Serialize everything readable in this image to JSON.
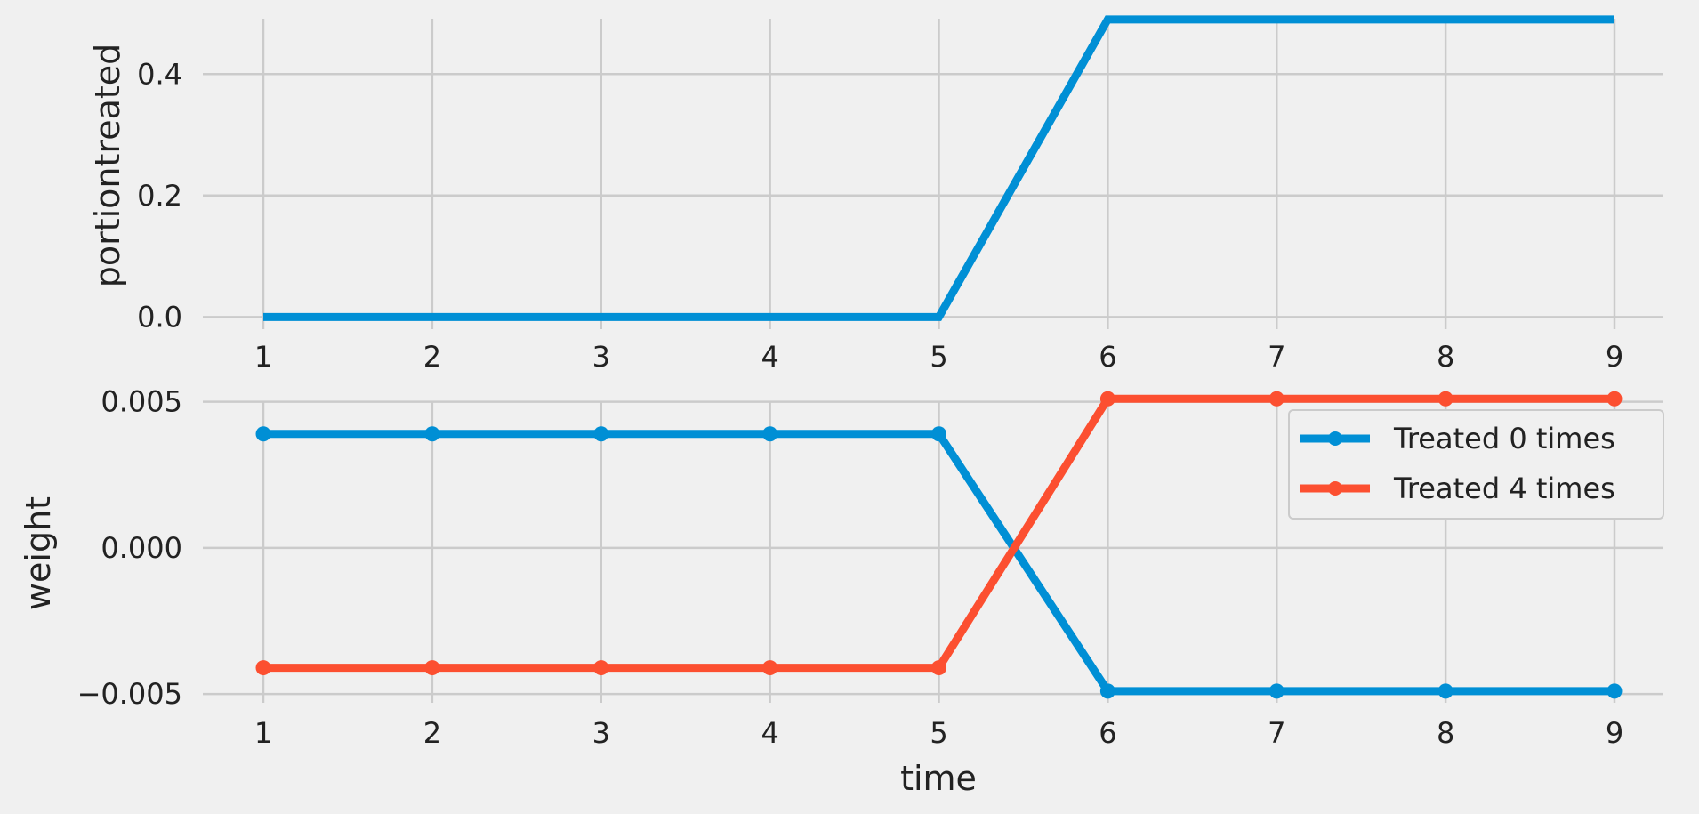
{
  "colors": {
    "background": "#f0f0f0",
    "grid": "#cbcbcb",
    "blue": "#008fd5",
    "red": "#fc4f30"
  },
  "chart_data": [
    {
      "type": "line",
      "x": [
        1,
        2,
        3,
        4,
        5,
        6,
        7,
        8,
        9
      ],
      "xticks": [
        "1",
        "2",
        "3",
        "4",
        "5",
        "6",
        "7",
        "8",
        "9"
      ],
      "xlabel": "",
      "ylabel": "portiontreated",
      "ylim": [
        -0.02,
        0.5
      ],
      "yticks": [
        0.0,
        0.2,
        0.4
      ],
      "ytick_labels": [
        "0.0",
        "0.2",
        "0.4"
      ],
      "grid": true,
      "series": [
        {
          "color": "#008fd5",
          "markers": false,
          "values": [
            0,
            0,
            0,
            0,
            0,
            0.49,
            0.49,
            0.49,
            0.49
          ]
        }
      ]
    },
    {
      "type": "line",
      "x": [
        1,
        2,
        3,
        4,
        5,
        6,
        7,
        8,
        9
      ],
      "xticks": [
        "1",
        "2",
        "3",
        "4",
        "5",
        "6",
        "7",
        "8",
        "9"
      ],
      "xlabel": "time",
      "ylabel": "weight",
      "ylim": [
        -0.0053,
        0.0052
      ],
      "yticks": [
        -0.005,
        0.0,
        0.005
      ],
      "ytick_labels": [
        "−0.005",
        "0.000",
        "0.005"
      ],
      "grid": true,
      "legend_position": "top-right",
      "series": [
        {
          "name": "Treated 0 times",
          "color": "#008fd5",
          "markers": true,
          "values": [
            0.0039,
            0.0039,
            0.0039,
            0.0039,
            0.0039,
            -0.0049,
            -0.0049,
            -0.0049,
            -0.0049
          ]
        },
        {
          "name": "Treated 4 times",
          "color": "#fc4f30",
          "markers": true,
          "values": [
            -0.0041,
            -0.0041,
            -0.0041,
            -0.0041,
            -0.0041,
            0.0051,
            0.0051,
            0.0051,
            0.0051
          ]
        }
      ]
    }
  ]
}
